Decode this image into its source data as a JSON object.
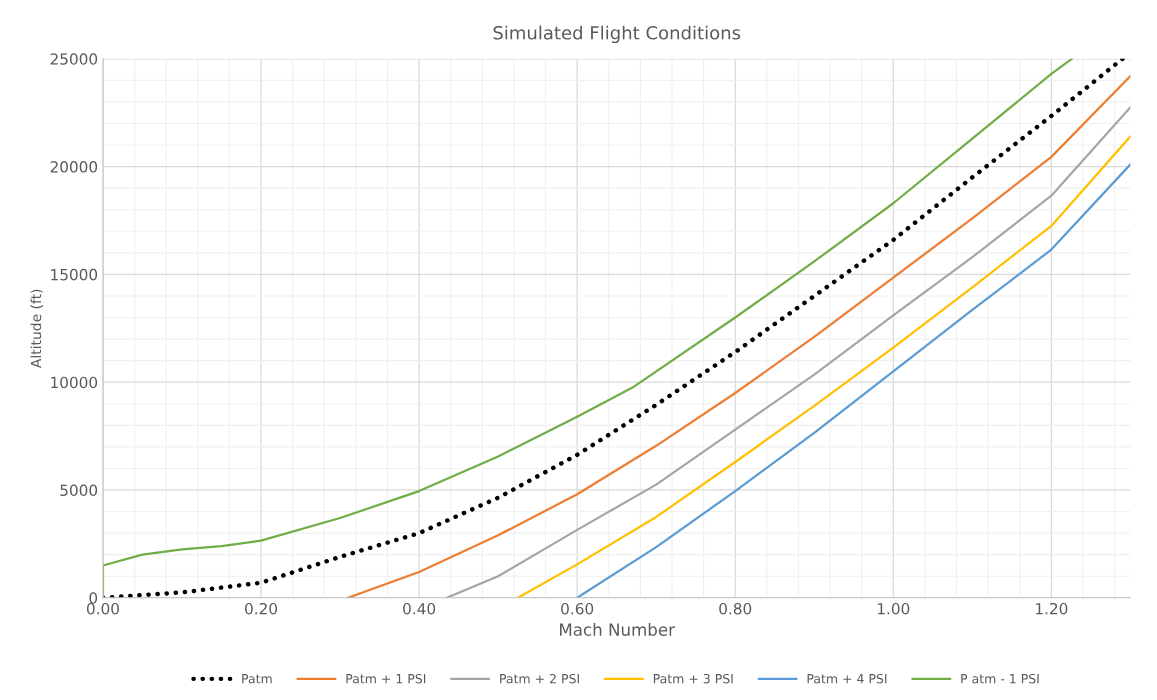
{
  "chart_data": {
    "type": "line",
    "title": "Simulated Flight Conditions",
    "xlabel": "Mach Number",
    "ylabel": "Altitude (ft)",
    "xlim": [
      0,
      1.3
    ],
    "ylim": [
      0,
      25000
    ],
    "xticks": [
      {
        "value": 0,
        "label": "0.00"
      },
      {
        "value": 0.2,
        "label": "0.20"
      },
      {
        "value": 0.4,
        "label": "0.40"
      },
      {
        "value": 0.6,
        "label": "0.60"
      },
      {
        "value": 0.8,
        "label": "0.80"
      },
      {
        "value": 1.0,
        "label": "1.00"
      },
      {
        "value": 1.2,
        "label": "1.20"
      }
    ],
    "yticks": [
      0,
      5000,
      10000,
      15000,
      20000,
      25000
    ],
    "grid": true,
    "legend": "bottom",
    "marker": "none",
    "series": [
      {
        "name": "Patm",
        "color": "#000000",
        "line_style": "dotted",
        "x": [
          0,
          0.1,
          0.2,
          0.3,
          0.4,
          0.5,
          0.6,
          0.7,
          0.8,
          0.9,
          1.0,
          1.1,
          1.2,
          1.29
        ],
        "values": [
          0,
          250,
          700,
          1900,
          3000,
          4640,
          6630,
          8950,
          11400,
          14000,
          16600,
          19500,
          22350,
          25000
        ]
      },
      {
        "name": "Patm + 1 PSI",
        "color": "#ed7d31",
        "x": [
          0.31,
          0.4,
          0.5,
          0.6,
          0.7,
          0.8,
          0.9,
          1.0,
          1.1,
          1.2,
          1.3
        ],
        "values": [
          0,
          1200,
          2900,
          4800,
          7050,
          9500,
          12100,
          14850,
          17600,
          20450,
          24200
        ]
      },
      {
        "name": "Patm + 2 PSI",
        "color": "#a5a5a5",
        "x": [
          0.435,
          0.5,
          0.6,
          0.7,
          0.8,
          0.9,
          1.0,
          1.1,
          1.2,
          1.3
        ],
        "values": [
          0,
          1000,
          3150,
          5250,
          7800,
          10350,
          13100,
          15800,
          18650,
          22750
        ]
      },
      {
        "name": "Patm + 3 PSI",
        "color": "#ffc000",
        "x": [
          0.525,
          0.6,
          0.7,
          0.8,
          0.9,
          1.0,
          1.1,
          1.2,
          1.3
        ],
        "values": [
          0,
          1550,
          3750,
          6300,
          8900,
          11600,
          14400,
          17250,
          21400
        ]
      },
      {
        "name": "Patm + 4 PSI",
        "color": "#5b9bd5",
        "x": [
          0.6,
          0.7,
          0.8,
          0.9,
          1.0,
          1.1,
          1.2,
          1.3
        ],
        "values": [
          0,
          2350,
          4950,
          7650,
          10500,
          13350,
          16150,
          20100
        ]
      },
      {
        "name": "P atm - 1 PSI",
        "color": "#70ad47",
        "x": [
          0,
          0,
          0.05,
          0.1,
          0.15,
          0.2,
          0.3,
          0.4,
          0.5,
          0.6,
          0.67,
          0.8,
          0.9,
          1.0,
          1.1,
          1.2,
          1.226
        ],
        "values": [
          0,
          1500,
          2000,
          2250,
          2400,
          2650,
          3700,
          4950,
          6550,
          8400,
          9750,
          13000,
          15600,
          18300,
          21300,
          24300,
          25000
        ]
      }
    ]
  }
}
